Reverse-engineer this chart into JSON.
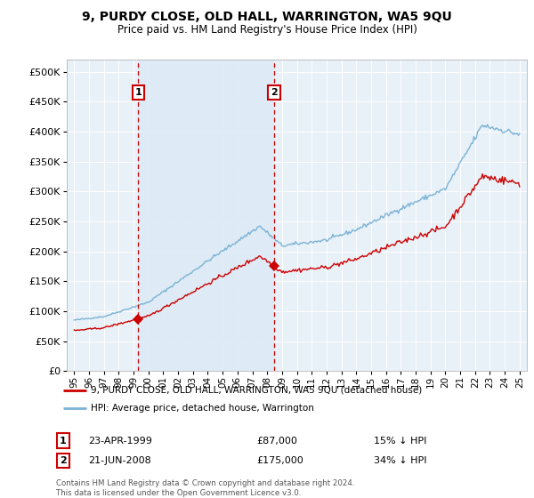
{
  "title": "9, PURDY CLOSE, OLD HALL, WARRINGTON, WA5 9QU",
  "subtitle": "Price paid vs. HM Land Registry's House Price Index (HPI)",
  "legend_line1": "9, PURDY CLOSE, OLD HALL, WARRINGTON, WA5 9QU (detached house)",
  "legend_line2": "HPI: Average price, detached house, Warrington",
  "footnote": "Contains HM Land Registry data © Crown copyright and database right 2024.\nThis data is licensed under the Open Government Licence v3.0.",
  "transaction1": {
    "label": "1",
    "date": "23-APR-1999",
    "price": 87000,
    "note": "15% ↓ HPI"
  },
  "transaction2": {
    "label": "2",
    "date": "21-JUN-2008",
    "price": 175000,
    "note": "34% ↓ HPI"
  },
  "sale1_year": 1999.31,
  "sale2_year": 2008.47,
  "hpi_color": "#7ab3d4",
  "price_color": "#cc0000",
  "sale_dot_color": "#cc0000",
  "vline_color": "#cc0000",
  "shade_color": "#ddeaf5",
  "background_chart": "#e8f0f8",
  "ylim": [
    0,
    520000
  ],
  "yticks": [
    0,
    50000,
    100000,
    150000,
    200000,
    250000,
    300000,
    350000,
    400000,
    450000,
    500000
  ],
  "xlim_start": 1994.5,
  "xlim_end": 2025.5,
  "xticks": [
    1995,
    1996,
    1997,
    1998,
    1999,
    2000,
    2001,
    2002,
    2003,
    2004,
    2005,
    2006,
    2007,
    2008,
    2009,
    2010,
    2011,
    2012,
    2013,
    2014,
    2015,
    2016,
    2017,
    2018,
    2019,
    2020,
    2021,
    2022,
    2023,
    2024,
    2025
  ]
}
